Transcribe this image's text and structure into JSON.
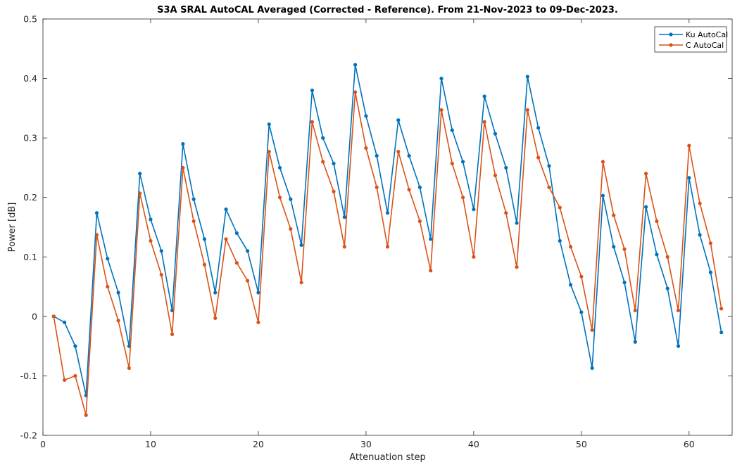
{
  "chart_data": {
    "type": "line",
    "title": "S3A SRAL AutoCAL Averaged (Corrected - Reference). From 21-Nov-2023 to 09-Dec-2023.",
    "xlabel": "Attenuation step",
    "ylabel": "Power [dB]",
    "xlim": [
      0,
      64
    ],
    "ylim": [
      -0.2,
      0.5
    ],
    "xticks": [
      "0",
      "10",
      "20",
      "30",
      "40",
      "50",
      "60"
    ],
    "yticks": [
      "-0.2",
      "-0.1",
      "0",
      "0.1",
      "0.2",
      "0.3",
      "0.4",
      "0.5"
    ],
    "grid": false,
    "legend_position": "top-right",
    "x": [
      1,
      2,
      3,
      4,
      5,
      6,
      7,
      8,
      9,
      10,
      11,
      12,
      13,
      14,
      15,
      16,
      17,
      18,
      19,
      20,
      21,
      22,
      23,
      24,
      25,
      26,
      27,
      28,
      29,
      30,
      31,
      32,
      33,
      34,
      35,
      36,
      37,
      38,
      39,
      40,
      41,
      42,
      43,
      44,
      45,
      46,
      47,
      48,
      49,
      50,
      51,
      52,
      53,
      54,
      55,
      56,
      57,
      58,
      59,
      60,
      61,
      62,
      63
    ],
    "series": [
      {
        "name": "Ku AutoCal",
        "color": "#0072BD",
        "values": [
          0.0,
          -0.01,
          -0.05,
          -0.133,
          0.174,
          0.097,
          0.04,
          -0.05,
          0.24,
          0.163,
          0.11,
          0.01,
          0.29,
          0.197,
          0.13,
          0.04,
          0.18,
          0.14,
          0.11,
          0.04,
          0.323,
          0.25,
          0.197,
          0.12,
          0.38,
          0.3,
          0.257,
          0.167,
          0.423,
          0.337,
          0.27,
          0.174,
          0.33,
          0.27,
          0.217,
          0.13,
          0.4,
          0.313,
          0.26,
          0.18,
          0.37,
          0.307,
          0.25,
          0.157,
          0.403,
          0.317,
          0.253,
          0.127,
          0.053,
          0.007,
          -0.087,
          0.203,
          0.117,
          0.057,
          -0.043,
          0.184,
          0.104,
          0.047,
          -0.05,
          0.233,
          0.137,
          0.074,
          -0.027
        ]
      },
      {
        "name": "C AutoCal",
        "color": "#D95319",
        "values": [
          0.0,
          -0.107,
          -0.1,
          -0.166,
          0.137,
          0.05,
          -0.007,
          -0.087,
          0.207,
          0.127,
          0.07,
          -0.03,
          0.25,
          0.16,
          0.087,
          -0.003,
          0.13,
          0.09,
          0.06,
          -0.01,
          0.277,
          0.2,
          0.147,
          0.057,
          0.327,
          0.26,
          0.21,
          0.117,
          0.377,
          0.283,
          0.217,
          0.117,
          0.277,
          0.213,
          0.16,
          0.077,
          0.347,
          0.257,
          0.2,
          0.1,
          0.327,
          0.237,
          0.174,
          0.083,
          0.347,
          0.267,
          0.217,
          0.183,
          0.117,
          0.067,
          -0.023,
          0.26,
          0.17,
          0.113,
          0.01,
          0.24,
          0.16,
          0.1,
          0.01,
          0.287,
          0.19,
          0.123,
          0.013
        ]
      }
    ]
  }
}
